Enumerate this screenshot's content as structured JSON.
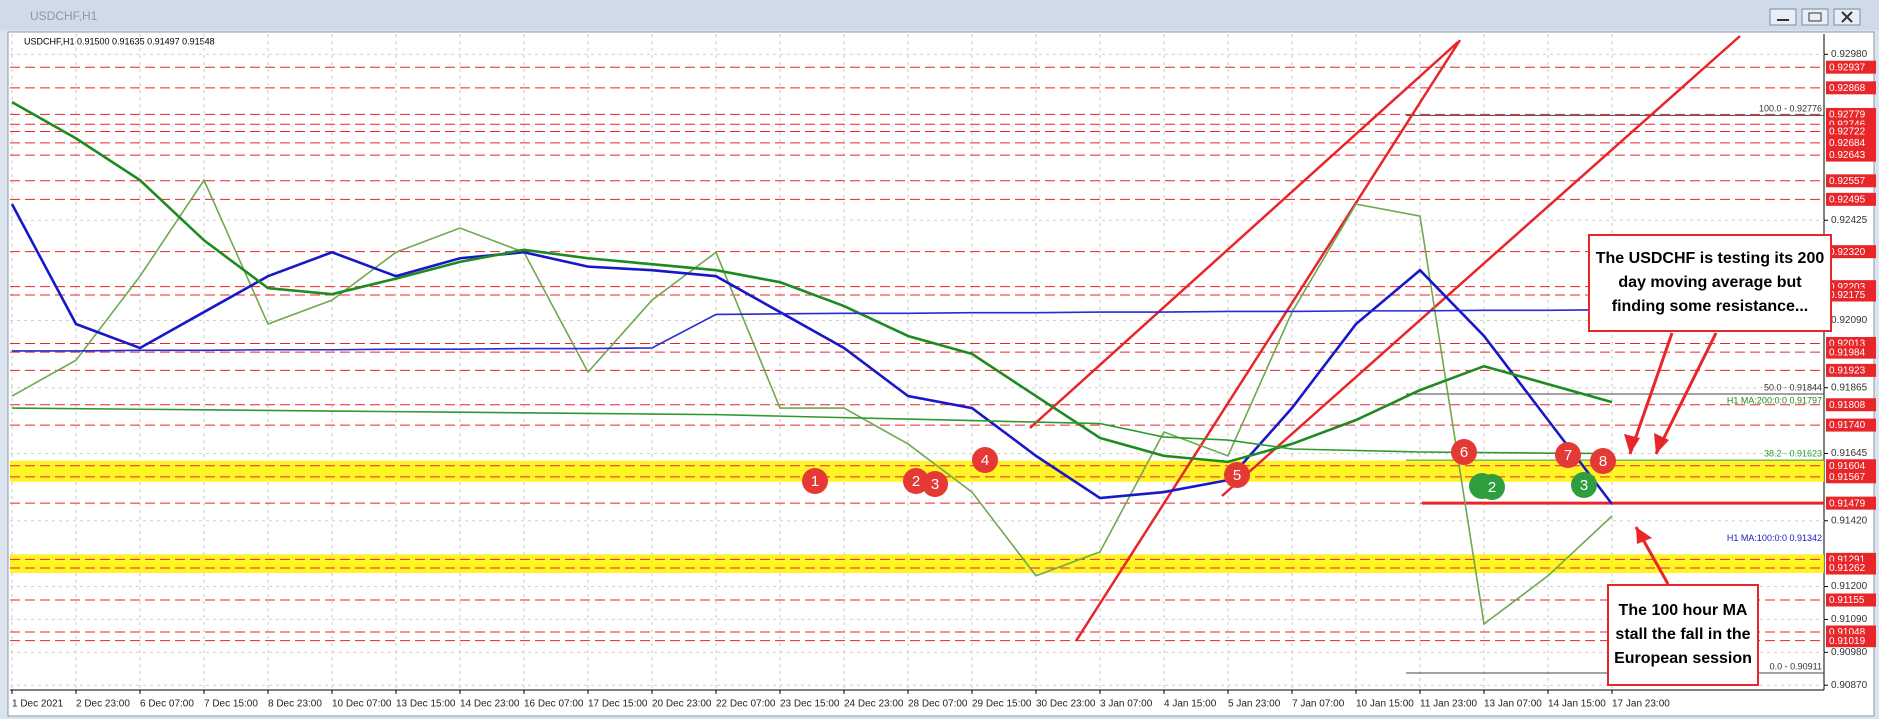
{
  "window_title": "USDCHF,H1",
  "info": "USDCHF,H1  0.91500 0.91635 0.91497 0.91548",
  "chart_data": {
    "type": "line",
    "categories": [
      "1 Dec 2021",
      "2 Dec 23:00",
      "6 Dec 07:00",
      "7 Dec 15:00",
      "8 Dec 23:00",
      "10 Dec 07:00",
      "13 Dec 15:00",
      "14 Dec 23:00",
      "16 Dec 07:00",
      "17 Dec 15:00",
      "20 Dec 23:00",
      "22 Dec 07:00",
      "23 Dec 15:00",
      "24 Dec 23:00",
      "28 Dec 07:00",
      "29 Dec 15:00",
      "30 Dec 23:00",
      "3 Jan 07:00",
      "4 Jan 15:00",
      "5 Jan 23:00",
      "7 Jan 07:00",
      "10 Jan 15:00",
      "11 Jan 23:00",
      "13 Jan 07:00",
      "14 Jan 15:00",
      "17 Jan 23:00"
    ],
    "series": [
      {
        "color": "#6fa84f",
        "values": [
          0.91837,
          0.91957,
          0.92238,
          0.92559,
          0.92078,
          0.92158,
          0.92318,
          0.92399,
          0.92318,
          0.91917,
          0.92158,
          0.92318,
          0.91797,
          0.91797,
          0.91677,
          0.91516,
          0.91236,
          0.91316,
          0.91717,
          0.91637,
          0.92118,
          0.92479,
          0.92439,
          0.91075,
          0.91236,
          0.91436
        ]
      },
      {
        "name": "H1 MA:100:0:0 0.91342",
        "color": "#1818c8",
        "values": [
          0.92479,
          0.92078,
          0.91998,
          0.92118,
          0.92238,
          0.92318,
          0.92238,
          0.92298,
          0.92318,
          0.9227,
          0.92258,
          0.92238,
          0.92118,
          0.91998,
          0.91837,
          0.91797,
          0.91637,
          0.91496,
          0.91516,
          0.91556,
          0.91797,
          0.92078,
          0.92258,
          0.92038,
          0.91757,
          0.91476
        ]
      },
      {
        "name": "H1 MA:200:0:0 0.91797",
        "color": "#1f8a1f",
        "values": [
          0.9282,
          0.92699,
          0.92559,
          0.92358,
          0.92198,
          0.92178,
          0.9223,
          0.92286,
          0.92326,
          0.92298,
          0.92278,
          0.92258,
          0.92218,
          0.92138,
          0.92038,
          0.91978,
          0.91837,
          0.91697,
          0.91637,
          0.91617,
          0.91677,
          0.91757,
          0.91857,
          0.91937,
          0.91877,
          0.91817
        ]
      },
      {
        "color": "#2a2ad0",
        "values": [
          0.91988,
          0.91988,
          0.9199,
          0.9199,
          0.91992,
          0.91992,
          0.91994,
          0.91994,
          0.91996,
          0.91996,
          0.91998,
          0.9211,
          0.92112,
          0.92114,
          0.92114,
          0.92116,
          0.92116,
          0.92118,
          0.92118,
          0.9212,
          0.9212,
          0.92122,
          0.92122,
          0.92124,
          0.92124,
          0.92126
        ]
      },
      {
        "color": "#2e9a2e",
        "values": [
          0.91797,
          0.91795,
          0.91793,
          0.91791,
          0.91789,
          0.91787,
          0.91785,
          0.91783,
          0.91781,
          0.91779,
          0.91777,
          0.91775,
          0.9177,
          0.91765,
          0.9176,
          0.91755,
          0.9175,
          0.91745,
          0.917,
          0.9169,
          0.9166,
          0.91655,
          0.9165,
          0.91648,
          0.91646,
          0.91645
        ]
      }
    ],
    "ylim": [
      0.90854,
      0.93048
    ],
    "yticks": [
      {
        "value": 0.9298,
        "label": "0.92980"
      },
      0.92425,
      {
        "value": 0.9209,
        "label": "0.92090"
      },
      0.91865,
      0.91645,
      {
        "value": 0.9142,
        "label": "0.91420"
      },
      {
        "value": 0.912,
        "label": "0.91200"
      },
      {
        "value": 0.9109,
        "label": "0.91090"
      },
      {
        "value": 0.9098,
        "label": "0.90980"
      },
      {
        "value": 0.9087,
        "label": "0.90870"
      }
    ],
    "grid": true,
    "levels": [
      0.92937,
      0.92868,
      0.92779,
      0.92746,
      0.92722,
      0.92684,
      0.92643,
      0.92557,
      0.92495,
      {
        "value": 0.9232,
        "label": "0.92320"
      },
      0.92203,
      0.92175,
      0.92013,
      0.91984,
      0.91923,
      0.91808,
      {
        "value": 0.9174,
        "label": "0.91740"
      },
      0.91604,
      0.91567,
      0.91479,
      0.91291,
      0.91262,
      0.91155,
      0.91048,
      0.91019
    ],
    "level_color": "#e8262a",
    "fib": [
      {
        "value": 0.92776,
        "label": "100.0 - 0.92776"
      },
      {
        "value": 0.91844,
        "label": "50.0 - 0.91844"
      },
      {
        "value": 0.91623,
        "label": "38.2 - 0.91623"
      },
      {
        "value": 0.90911,
        "label": "0.0 - 0.90911"
      }
    ],
    "markers": [
      {
        "label": "1",
        "color": "#e53935"
      },
      {
        "label": "2",
        "color": "#e53935"
      },
      {
        "label": "3",
        "color": "#e53935"
      },
      {
        "label": "4",
        "color": "#e53935"
      },
      {
        "label": "5",
        "color": "#e53935"
      },
      {
        "label": "6",
        "color": "#e53935"
      },
      {
        "label": "7",
        "color": "#e53935"
      },
      {
        "label": "8",
        "color": "#e53935"
      },
      {
        "label": "2",
        "color": "#2e9e3e"
      },
      {
        "label": "3",
        "color": "#2e9e3e"
      }
    ],
    "annotations": [
      [
        "The USDCHF is testing its 200",
        "day moving average but",
        "finding some resistance..."
      ],
      [
        "The 100 hour MA",
        "stall the fall in the",
        "European session"
      ]
    ]
  }
}
